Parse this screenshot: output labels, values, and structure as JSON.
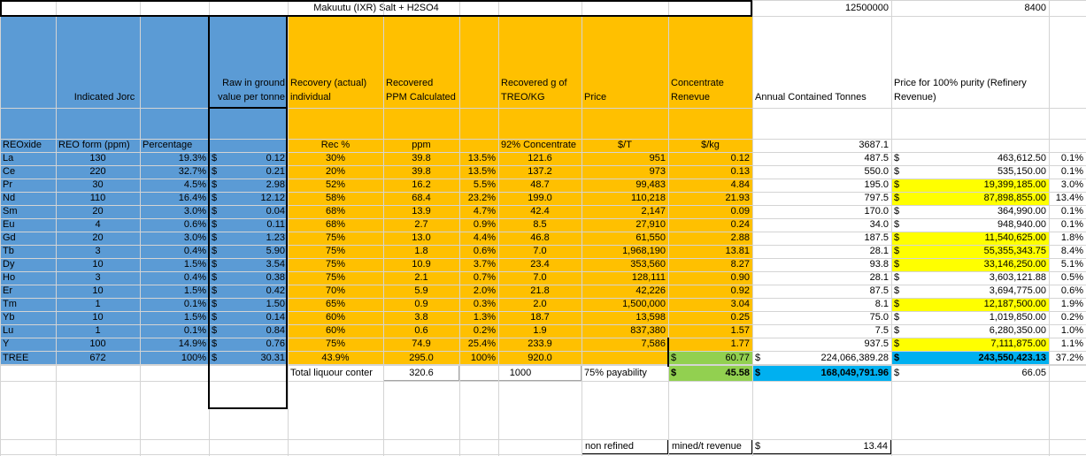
{
  "title": "Makuutu (IXR) Salt + H2SO4",
  "top_values": {
    "tonnes": "12500000",
    "price_param": "8400"
  },
  "headers": {
    "indicated": "Indicated Jorc",
    "raw": "Raw in ground value per tonne",
    "recovery": "Recovery (actual) individual",
    "recovered_ppm": "Recovered PPM Calculated",
    "recovered_g": "Recovered g of TREO/KG",
    "price": "Price",
    "concentrate": "Concentrate Renevue",
    "annual": "Annual Contained Tonnes",
    "refinery": "Price for 100% purity (Refinery Revenue)"
  },
  "subheaders": {
    "reoxide": "REOxide",
    "reo_form": "REO form (ppm)",
    "percentage": "Percentage",
    "rec_pct": "Rec %",
    "ppm": "ppm",
    "conc92": "92% Concentrate",
    "per_t": "$/T",
    "per_kg": "$/kg",
    "annual_total": "3687.1"
  },
  "rows": [
    {
      "el": "La",
      "reo": "130",
      "pct": "19.3%",
      "raw": "0.12",
      "rec": "30%",
      "ppm": "39.8",
      "share": "13.5%",
      "g": "121.6",
      "price": "951",
      "conc": "0.12",
      "tonnes": "487.5",
      "refinery": "463,612.50",
      "refpct": "0.1%",
      "hl": false
    },
    {
      "el": "Ce",
      "reo": "220",
      "pct": "32.7%",
      "raw": "0.21",
      "rec": "20%",
      "ppm": "39.8",
      "share": "13.5%",
      "g": "137.2",
      "price": "973",
      "conc": "0.13",
      "tonnes": "550.0",
      "refinery": "535,150.00",
      "refpct": "0.1%",
      "hl": false
    },
    {
      "el": "Pr",
      "reo": "30",
      "pct": "4.5%",
      "raw": "2.98",
      "rec": "52%",
      "ppm": "16.2",
      "share": "5.5%",
      "g": "48.7",
      "price": "99,483",
      "conc": "4.84",
      "tonnes": "195.0",
      "refinery": "19,399,185.00",
      "refpct": "3.0%",
      "hl": true
    },
    {
      "el": "Nd",
      "reo": "110",
      "pct": "16.4%",
      "raw": "12.12",
      "rec": "58%",
      "ppm": "68.4",
      "share": "23.2%",
      "g": "199.0",
      "price": "110,218",
      "conc": "21.93",
      "tonnes": "797.5",
      "refinery": "87,898,855.00",
      "refpct": "13.4%",
      "hl": true
    },
    {
      "el": "Sm",
      "reo": "20",
      "pct": "3.0%",
      "raw": "0.04",
      "rec": "68%",
      "ppm": "13.9",
      "share": "4.7%",
      "g": "42.4",
      "price": "2,147",
      "conc": "0.09",
      "tonnes": "170.0",
      "refinery": "364,990.00",
      "refpct": "0.1%",
      "hl": false
    },
    {
      "el": "Eu",
      "reo": "4",
      "pct": "0.6%",
      "raw": "0.11",
      "rec": "68%",
      "ppm": "2.7",
      "share": "0.9%",
      "g": "8.5",
      "price": "27,910",
      "conc": "0.24",
      "tonnes": "34.0",
      "refinery": "948,940.00",
      "refpct": "0.1%",
      "hl": false
    },
    {
      "el": "Gd",
      "reo": "20",
      "pct": "3.0%",
      "raw": "1.23",
      "rec": "75%",
      "ppm": "13.0",
      "share": "4.4%",
      "g": "46.8",
      "price": "61,550",
      "conc": "2.88",
      "tonnes": "187.5",
      "refinery": "11,540,625.00",
      "refpct": "1.8%",
      "hl": true
    },
    {
      "el": "Tb",
      "reo": "3",
      "pct": "0.4%",
      "raw": "5.90",
      "rec": "75%",
      "ppm": "1.8",
      "share": "0.6%",
      "g": "7.0",
      "price": "1,968,190",
      "conc": "13.81",
      "tonnes": "28.1",
      "refinery": "55,355,343.75",
      "refpct": "8.4%",
      "hl": true
    },
    {
      "el": "Dy",
      "reo": "10",
      "pct": "1.5%",
      "raw": "3.54",
      "rec": "75%",
      "ppm": "10.9",
      "share": "3.7%",
      "g": "23.4",
      "price": "353,560",
      "conc": "8.27",
      "tonnes": "93.8",
      "refinery": "33,146,250.00",
      "refpct": "5.1%",
      "hl": true
    },
    {
      "el": "Ho",
      "reo": "3",
      "pct": "0.4%",
      "raw": "0.38",
      "rec": "75%",
      "ppm": "2.1",
      "share": "0.7%",
      "g": "7.0",
      "price": "128,111",
      "conc": "0.90",
      "tonnes": "28.1",
      "refinery": "3,603,121.88",
      "refpct": "0.5%",
      "hl": false
    },
    {
      "el": "Er",
      "reo": "10",
      "pct": "1.5%",
      "raw": "0.42",
      "rec": "70%",
      "ppm": "5.9",
      "share": "2.0%",
      "g": "21.8",
      "price": "42,226",
      "conc": "0.92",
      "tonnes": "87.5",
      "refinery": "3,694,775.00",
      "refpct": "0.6%",
      "hl": false
    },
    {
      "el": "Tm",
      "reo": "1",
      "pct": "0.1%",
      "raw": "1.50",
      "rec": "65%",
      "ppm": "0.9",
      "share": "0.3%",
      "g": "2.0",
      "price": "1,500,000",
      "conc": "3.04",
      "tonnes": "8.1",
      "refinery": "12,187,500.00",
      "refpct": "1.9%",
      "hl": true
    },
    {
      "el": "Yb",
      "reo": "10",
      "pct": "1.5%",
      "raw": "0.14",
      "rec": "60%",
      "ppm": "3.8",
      "share": "1.3%",
      "g": "18.7",
      "price": "13,598",
      "conc": "0.25",
      "tonnes": "75.0",
      "refinery": "1,019,850.00",
      "refpct": "0.2%",
      "hl": false
    },
    {
      "el": "Lu",
      "reo": "1",
      "pct": "0.1%",
      "raw": "0.84",
      "rec": "60%",
      "ppm": "0.6",
      "share": "0.2%",
      "g": "1.9",
      "price": "837,380",
      "conc": "1.57",
      "tonnes": "7.5",
      "refinery": "6,280,350.00",
      "refpct": "1.0%",
      "hl": false
    },
    {
      "el": "Y",
      "reo": "100",
      "pct": "14.9%",
      "raw": "0.76",
      "rec": "75%",
      "ppm": "74.9",
      "share": "25.4%",
      "g": "233.9",
      "price": "7,586",
      "conc": "1.77",
      "tonnes": "937.5",
      "refinery": "7,111,875.00",
      "refpct": "1.1%",
      "hl": true
    }
  ],
  "total": {
    "el": "TREE",
    "reo": "672",
    "pct": "100%",
    "raw": "30.31",
    "rec": "43.9%",
    "ppm": "295.0",
    "share": "100%",
    "g": "920.0",
    "conc": "60.77",
    "tonnes": "224,066,389.28",
    "refinery": "243,550,423.13",
    "refpct": "37.2%"
  },
  "dollar": "$",
  "summary": {
    "liquor_label": "Total liquour conter",
    "liquor_value": "320.6",
    "value_1000": "1000",
    "payability": "75% payability",
    "pay_conc": "45.58",
    "pay_tonnes": "168,049,791.96",
    "pay_refinery": "66.05",
    "non_refined": "non refined",
    "mined_label": "mined/t revenue",
    "mined_value": "13.44"
  },
  "colors": {
    "blue": "#5b9bd5",
    "orange": "#ffc000",
    "yellow": "#ffff00",
    "green": "#92d050",
    "cyan": "#00b0f0"
  }
}
